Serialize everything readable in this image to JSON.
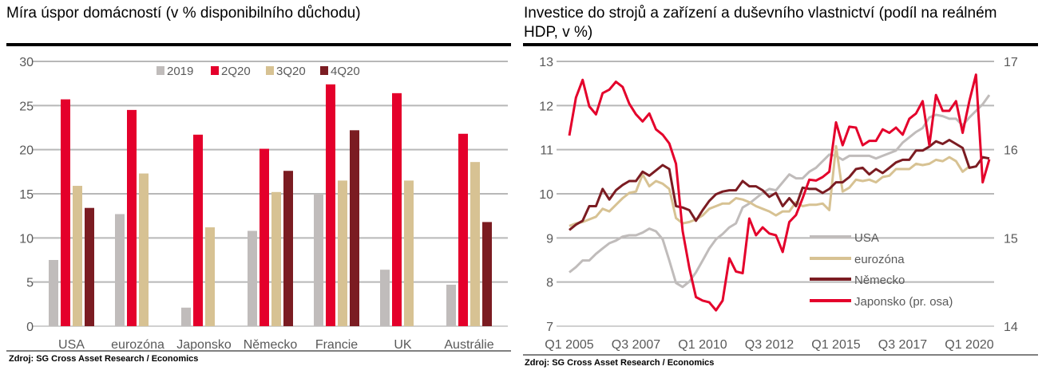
{
  "chart_data": [
    {
      "type": "bar",
      "title": "Míra úspor domácností (v % disponibilního důchodu)",
      "xlabel": "",
      "ylabel": "",
      "ylim": [
        0,
        30
      ],
      "yticks": [
        "0",
        "5",
        "10",
        "15",
        "20",
        "25",
        "30"
      ],
      "grid": true,
      "legend_position": "top-center",
      "categories": [
        "USA",
        "eurozóna",
        "Japonsko",
        "Německo",
        "Francie",
        "UK",
        "Austrálie"
      ],
      "series": [
        {
          "name": "2019",
          "color": "#C0BCBB",
          "values": [
            7.5,
            12.7,
            2.1,
            10.8,
            15.0,
            6.4,
            4.7
          ]
        },
        {
          "name": "2Q20",
          "color": "#E4002B",
          "values": [
            25.7,
            24.5,
            21.7,
            20.1,
            27.4,
            26.4,
            21.8
          ]
        },
        {
          "name": "3Q20",
          "color": "#D7C293",
          "values": [
            15.9,
            17.3,
            11.2,
            15.2,
            16.5,
            16.5,
            18.6
          ]
        },
        {
          "name": "4Q20",
          "color": "#7B1C22",
          "values": [
            13.4,
            null,
            null,
            17.6,
            22.2,
            null,
            11.8
          ]
        }
      ],
      "source": "Zdroj: SG Cross Asset Research / Economics"
    },
    {
      "type": "line",
      "title": "Investice do strojů a zařízení a duševního vlastnictví (podíl na reálném HDP, v %)",
      "xlabel": "",
      "ylabel": "",
      "ylim": [
        7,
        13
      ],
      "y2lim": [
        14,
        17
      ],
      "yticks": [
        "7",
        "8",
        "9",
        "10",
        "11",
        "12",
        "13"
      ],
      "y2ticks": [
        "14",
        "15",
        "16",
        "17"
      ],
      "xticks": [
        "Q1 2005",
        "Q3 2007",
        "Q1 2010",
        "Q3 2012",
        "Q1 2015",
        "Q3 2017",
        "Q1 2020"
      ],
      "xtick_indices": [
        0,
        10,
        20,
        30,
        40,
        50,
        60
      ],
      "n_quarters": 64,
      "grid": true,
      "legend_position": "bottom-right",
      "series": [
        {
          "name": "USA",
          "color": "#C0BCBB",
          "axis": "left",
          "values": [
            8.22,
            8.34,
            8.49,
            8.49,
            8.64,
            8.76,
            8.88,
            8.94,
            9.03,
            9.06,
            9.06,
            9.12,
            9.21,
            9.15,
            8.97,
            8.49,
            7.98,
            7.89,
            8.01,
            8.22,
            8.49,
            8.76,
            8.97,
            9.09,
            9.24,
            9.33,
            9.69,
            9.78,
            9.9,
            10.02,
            10.11,
            10.08,
            10.26,
            10.44,
            10.35,
            10.35,
            10.5,
            10.59,
            10.74,
            10.89,
            10.86,
            10.77,
            10.86,
            10.86,
            10.86,
            10.86,
            10.8,
            10.86,
            10.92,
            10.98,
            11.16,
            11.28,
            11.4,
            11.49,
            11.73,
            11.79,
            11.76,
            11.7,
            11.7,
            11.55,
            11.73,
            11.88,
            12.03,
            12.24
          ]
        },
        {
          "name": "eurozóna",
          "color": "#D7C293",
          "axis": "left",
          "values": [
            9.27,
            9.33,
            9.36,
            9.42,
            9.48,
            9.66,
            9.6,
            9.75,
            9.9,
            10.02,
            10.05,
            10.44,
            10.17,
            10.29,
            10.23,
            10.11,
            9.45,
            9.33,
            9.36,
            9.42,
            9.51,
            9.66,
            9.72,
            9.78,
            9.78,
            9.9,
            9.87,
            9.81,
            9.72,
            9.66,
            9.6,
            9.51,
            9.6,
            9.6,
            9.81,
            9.72,
            9.75,
            9.75,
            9.78,
            9.63,
            11.08,
            10.05,
            10.14,
            10.32,
            10.29,
            10.32,
            10.26,
            10.38,
            10.41,
            10.56,
            10.56,
            10.56,
            10.68,
            10.65,
            10.68,
            10.77,
            10.74,
            10.83,
            10.74,
            10.5,
            10.62
          ]
        },
        {
          "name": "Německo",
          "color": "#7B1C22",
          "axis": "left",
          "values": [
            9.18,
            9.3,
            9.39,
            9.72,
            9.72,
            10.11,
            9.87,
            10.08,
            10.2,
            10.29,
            10.29,
            10.5,
            10.41,
            10.53,
            10.65,
            10.56,
            9.72,
            9.69,
            9.63,
            9.39,
            9.63,
            9.84,
            9.99,
            10.05,
            10.08,
            10.08,
            10.29,
            10.17,
            10.17,
            10.08,
            9.93,
            10.02,
            9.72,
            9.9,
            9.72,
            10.14,
            10.11,
            10.11,
            10.02,
            10.11,
            10.26,
            10.26,
            10.38,
            10.56,
            10.59,
            10.44,
            10.56,
            10.47,
            10.59,
            10.71,
            10.77,
            10.77,
            10.98,
            10.98,
            11.07,
            11.19,
            11.13,
            11.22,
            11.13,
            11.04,
            10.59,
            10.62,
            10.83,
            10.8
          ]
        },
        {
          "name": "Japonsko (pr. osa)",
          "color": "#E4002B",
          "axis": "right",
          "values": [
            16.16,
            16.59,
            16.79,
            16.49,
            16.4,
            16.64,
            16.68,
            16.77,
            16.71,
            16.52,
            16.4,
            16.32,
            16.41,
            16.23,
            16.17,
            16.07,
            15.84,
            15.08,
            14.66,
            14.33,
            14.29,
            14.27,
            14.18,
            14.29,
            14.77,
            14.62,
            14.6,
            15.22,
            15.03,
            15.12,
            15.05,
            15.03,
            14.84,
            15.18,
            15.26,
            15.45,
            15.66,
            15.65,
            15.69,
            15.75,
            16.31,
            16.05,
            16.26,
            16.25,
            16.05,
            16.1,
            16.1,
            16.23,
            16.19,
            16.25,
            16.17,
            16.35,
            16.41,
            16.55,
            16.05,
            16.62,
            16.44,
            16.44,
            16.55,
            16.19,
            16.55,
            16.85,
            15.63,
            15.89
          ]
        }
      ],
      "source": "Zdroj: SG Cross Asset Research / Economics"
    }
  ]
}
